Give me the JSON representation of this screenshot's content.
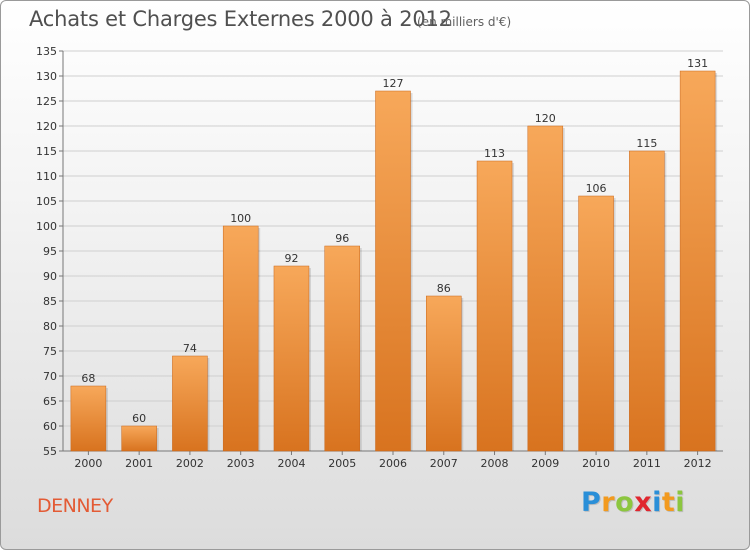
{
  "header": {
    "title": "Achats et Charges Externes 2000 à 2012",
    "subtitle": "(en milliers d'€)"
  },
  "footer": {
    "place": "DENNEY",
    "logo_letters": [
      {
        "ch": "P",
        "color": "#2a8fd8"
      },
      {
        "ch": "r",
        "color": "#f29a1f"
      },
      {
        "ch": "o",
        "color": "#8cc63f"
      },
      {
        "ch": "x",
        "color": "#e0262f"
      },
      {
        "ch": "i",
        "color": "#2a8fd8"
      },
      {
        "ch": "t",
        "color": "#f29a1f"
      },
      {
        "ch": "i",
        "color": "#8cc63f"
      }
    ]
  },
  "colors": {
    "bar_light": "#f7a85a",
    "bar_dark": "#d8731f",
    "grid": "#cfcfcf",
    "place": "#e35b35"
  },
  "chart_data": {
    "type": "bar",
    "title": "Achats et Charges Externes 2000 à 2012",
    "subtitle": "(en milliers d'€)",
    "categories": [
      "2000",
      "2001",
      "2002",
      "2003",
      "2004",
      "2005",
      "2006",
      "2007",
      "2008",
      "2009",
      "2010",
      "2011",
      "2012"
    ],
    "values": [
      68,
      60,
      74,
      100,
      92,
      96,
      127,
      86,
      113,
      120,
      106,
      115,
      131
    ],
    "ylim": [
      55,
      135
    ],
    "yticks": [
      55,
      60,
      65,
      70,
      75,
      80,
      85,
      90,
      95,
      100,
      105,
      110,
      115,
      120,
      125,
      130,
      135
    ],
    "grid": true,
    "xlabel": "",
    "ylabel": ""
  }
}
